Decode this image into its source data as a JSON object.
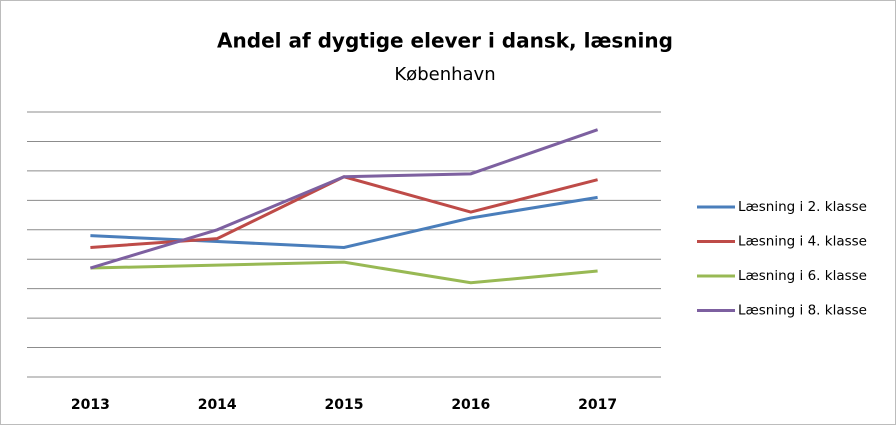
{
  "chart_data": {
    "type": "line",
    "title": "Andel af dygtige elever i dansk,  læsning",
    "subtitle": "København",
    "categories": [
      "2013",
      "2014",
      "2015",
      "2016",
      "2017"
    ],
    "series": [
      {
        "name": "Læsning i 2. klasse",
        "color": "#4a7ebb",
        "values": [
          4.8,
          4.6,
          4.4,
          5.4,
          6.1
        ]
      },
      {
        "name": "Læsning i 4. klasse",
        "color": "#be4b48",
        "values": [
          4.4,
          4.7,
          6.8,
          5.6,
          6.7
        ]
      },
      {
        "name": "Læsning i 6. klasse",
        "color": "#98b954",
        "values": [
          3.7,
          3.8,
          3.9,
          3.2,
          3.6
        ]
      },
      {
        "name": "Læsning i 8. klasse",
        "color": "#7d60a0",
        "values": [
          3.7,
          5.0,
          6.8,
          6.9,
          8.4
        ]
      }
    ],
    "ylim": [
      0,
      9
    ],
    "yticks": [
      0,
      1,
      2,
      3,
      4,
      5,
      6,
      7,
      8,
      9
    ],
    "grid": true,
    "legend": "right"
  }
}
